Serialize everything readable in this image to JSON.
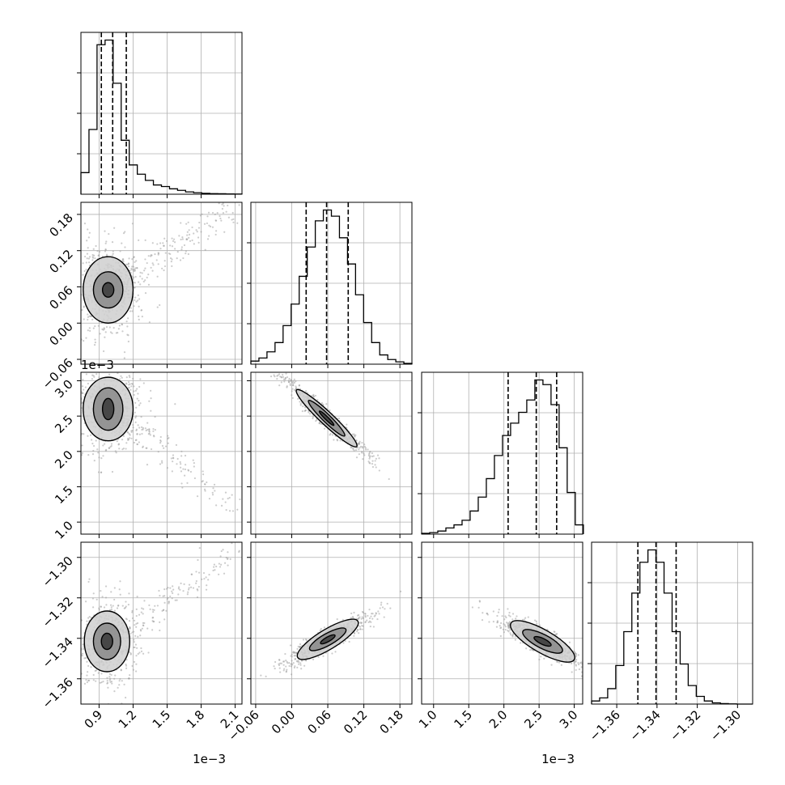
{
  "chart_data": {
    "type": "corner",
    "axes_values": {
      "p0": {
        "lim": [
          0.00074,
          0.00216
        ],
        "ticks": [
          0.0009,
          0.0012,
          0.0015,
          0.0018,
          0.0021
        ],
        "tick_labels": [
          "0.9",
          "1.2",
          "1.5",
          "1.8",
          "2.1"
        ],
        "offset_text": "1e−3"
      },
      "p1": {
        "lim": [
          -0.068,
          0.2
        ],
        "ticks": [
          -0.06,
          0.0,
          0.06,
          0.12,
          0.18
        ],
        "tick_labels": [
          "−0.06",
          "0.00",
          "0.06",
          "0.12",
          "0.18"
        ],
        "offset_text": ""
      },
      "p2": {
        "lim": [
          0.00083,
          0.00312
        ],
        "ticks": [
          0.001,
          0.0015,
          0.002,
          0.0025,
          0.003
        ],
        "tick_labels": [
          "1.0",
          "1.5",
          "2.0",
          "2.5",
          "3.0"
        ],
        "offset_text": "1e−3"
      },
      "p3": {
        "lim": [
          -1.3725,
          -1.2925
        ],
        "ticks": [
          -1.36,
          -1.34,
          -1.32,
          -1.3
        ],
        "tick_labels": [
          "−1.36",
          "−1.34",
          "−1.32",
          "−1.30"
        ],
        "offset_text": ""
      }
    },
    "histograms": [
      {
        "param": "p0",
        "bins": [
          0.00074,
          0.000811,
          0.000882,
          0.000953,
          0.001024,
          0.001095,
          0.001166,
          0.001237,
          0.001308,
          0.001379,
          0.00145,
          0.001521,
          0.001592,
          0.001663,
          0.001734,
          0.001805,
          0.001876,
          0.001947,
          0.002018,
          0.002089,
          0.00216
        ],
        "counts": [
          0.14,
          0.42,
          0.97,
          1.0,
          0.72,
          0.35,
          0.19,
          0.13,
          0.09,
          0.06,
          0.05,
          0.035,
          0.025,
          0.015,
          0.01,
          0.006,
          0.004,
          0.003,
          0.002,
          0.001
        ],
        "quantiles": [
          0.00092,
          0.00102,
          0.00114
        ]
      },
      {
        "param": "p1",
        "bins": [
          -0.068,
          -0.0546,
          -0.0412,
          -0.0278,
          -0.0144,
          -0.001,
          0.0124,
          0.0258,
          0.0392,
          0.0526,
          0.066,
          0.0794,
          0.0928,
          0.1062,
          0.1196,
          0.133,
          0.1464,
          0.1598,
          0.1732,
          0.1866,
          0.2
        ],
        "counts": [
          0.02,
          0.04,
          0.08,
          0.14,
          0.25,
          0.39,
          0.57,
          0.76,
          0.93,
          1.0,
          0.96,
          0.82,
          0.65,
          0.45,
          0.27,
          0.14,
          0.06,
          0.03,
          0.015,
          0.005
        ],
        "quantiles": [
          0.024,
          0.058,
          0.094
        ]
      },
      {
        "param": "p2",
        "bins": [
          0.00083,
          0.000945,
          0.00106,
          0.001175,
          0.00129,
          0.001405,
          0.00152,
          0.001635,
          0.00175,
          0.001865,
          0.00198,
          0.002095,
          0.00221,
          0.002325,
          0.00244,
          0.002555,
          0.00267,
          0.002785,
          0.0029,
          0.003015,
          0.00313
        ],
        "counts": [
          0.005,
          0.01,
          0.02,
          0.04,
          0.06,
          0.09,
          0.15,
          0.24,
          0.36,
          0.51,
          0.64,
          0.72,
          0.79,
          0.87,
          1.0,
          0.97,
          0.84,
          0.56,
          0.27,
          0.06
        ],
        "quantiles": [
          0.00206,
          0.00246,
          0.00275
        ]
      },
      {
        "param": "p3",
        "bins": [
          -1.3725,
          -1.3685,
          -1.3645,
          -1.3605,
          -1.3565,
          -1.3525,
          -1.3485,
          -1.3445,
          -1.3405,
          -1.3365,
          -1.3325,
          -1.3285,
          -1.3245,
          -1.3205,
          -1.3165,
          -1.3125,
          -1.3085,
          -1.3045,
          -1.3005,
          -1.2965,
          -1.2925
        ],
        "counts": [
          0.02,
          0.04,
          0.1,
          0.25,
          0.47,
          0.72,
          0.92,
          1.0,
          0.92,
          0.72,
          0.47,
          0.26,
          0.12,
          0.05,
          0.02,
          0.008,
          0.003,
          0.001,
          0.0,
          0.0
        ],
        "quantiles": [
          -1.3495,
          -1.3405,
          -1.3305
        ]
      }
    ],
    "pairs": [
      {
        "x": "p0",
        "y": "p1",
        "center": [
          0.00098,
          0.055
        ],
        "levels": [
          [
            5e-05,
            0.012
          ],
          [
            0.00013,
            0.03
          ],
          [
            0.00022,
            0.055
          ]
        ],
        "tail": [
          0.0021,
          0.19
        ]
      },
      {
        "x": "p0",
        "y": "p2",
        "center": [
          0.00098,
          0.0026
        ],
        "levels": [
          [
            5e-05,
            0.00015
          ],
          [
            0.00013,
            0.0003
          ],
          [
            0.00022,
            0.00045
          ]
        ],
        "tail": [
          0.0021,
          0.0012
        ]
      },
      {
        "x": "p0",
        "y": "p3",
        "center": [
          0.00097,
          -1.3415
        ],
        "levels": [
          [
            5e-05,
            0.004
          ],
          [
            0.00012,
            0.009
          ],
          [
            0.0002,
            0.015
          ]
        ],
        "tail": [
          0.0021,
          -1.298
        ]
      },
      {
        "x": "p1",
        "y": "p2",
        "center": [
          0.058,
          0.00247
        ],
        "corr": -0.97,
        "levels": [
          [
            0.012,
            0.0001
          ],
          [
            0.03,
            0.00025
          ],
          [
            0.05,
            0.0004
          ]
        ]
      },
      {
        "x": "p1",
        "y": "p3",
        "center": [
          0.06,
          -1.3405
        ],
        "corr": 0.9,
        "levels": [
          [
            0.012,
            0.002
          ],
          [
            0.03,
            0.005
          ],
          [
            0.05,
            0.009
          ]
        ]
      },
      {
        "x": "p2",
        "y": "p3",
        "center": [
          0.00255,
          -1.3415
        ],
        "corr": -0.88,
        "levels": [
          [
            0.00012,
            0.002
          ],
          [
            0.00028,
            0.005
          ],
          [
            0.00045,
            0.009
          ]
        ]
      }
    ],
    "grid": true,
    "legend": "none"
  }
}
